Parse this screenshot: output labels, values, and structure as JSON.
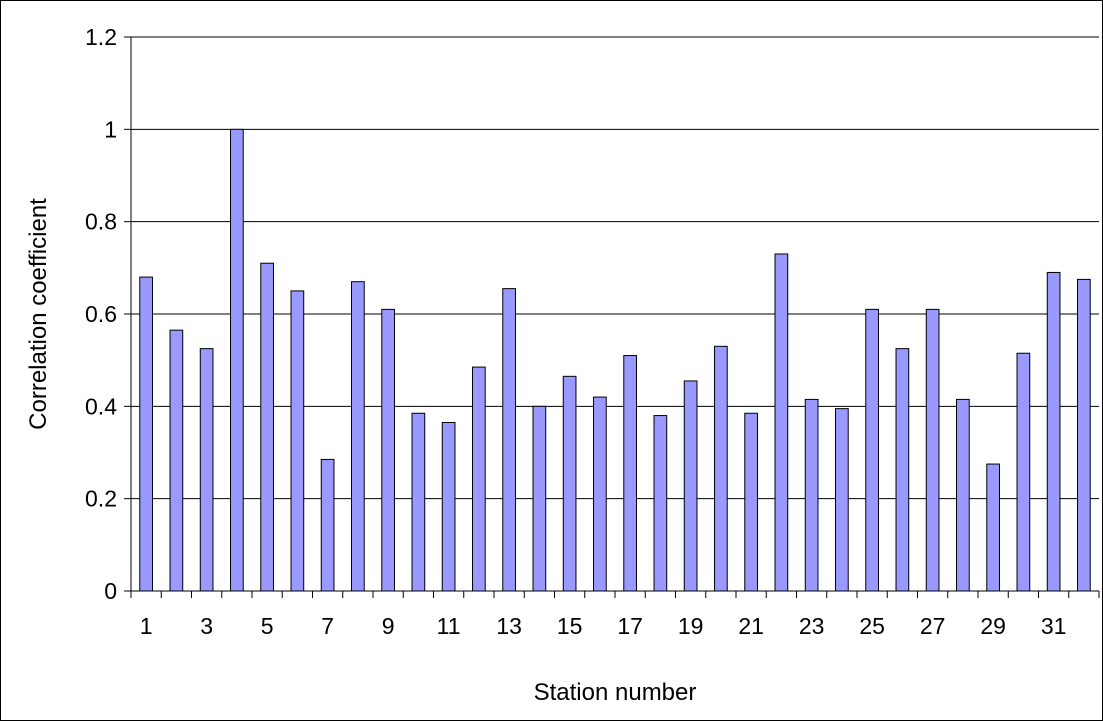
{
  "chart_data": {
    "type": "bar",
    "title": "",
    "xlabel": "Station number",
    "ylabel": "Correlation coefficient",
    "ylim": [
      0,
      1.2
    ],
    "yticks": [
      "0",
      "0.2",
      "0.4",
      "0.6",
      "0.8",
      "1",
      "1.2"
    ],
    "categories": [
      "1",
      "2",
      "3",
      "4",
      "5",
      "6",
      "7",
      "8",
      "9",
      "10",
      "11",
      "12",
      "13",
      "14",
      "15",
      "16",
      "17",
      "18",
      "19",
      "20",
      "21",
      "22",
      "23",
      "24",
      "25",
      "26",
      "27",
      "28",
      "29",
      "30",
      "31",
      "32"
    ],
    "shown_category_labels": [
      "1",
      "3",
      "5",
      "7",
      "9",
      "11",
      "13",
      "15",
      "17",
      "19",
      "21",
      "23",
      "25",
      "27",
      "29",
      "31"
    ],
    "values": [
      0.68,
      0.565,
      0.525,
      1.0,
      0.71,
      0.65,
      0.285,
      0.67,
      0.61,
      0.385,
      0.365,
      0.485,
      0.655,
      0.4,
      0.465,
      0.42,
      0.51,
      0.38,
      0.455,
      0.53,
      0.385,
      0.73,
      0.415,
      0.395,
      0.61,
      0.525,
      0.61,
      0.415,
      0.275,
      0.515,
      0.69,
      0.675
    ],
    "grid": true,
    "legend": "none",
    "bar_color": "#9999ff",
    "bar_edge_color": "#000000",
    "plot_background": "#ffffff"
  }
}
